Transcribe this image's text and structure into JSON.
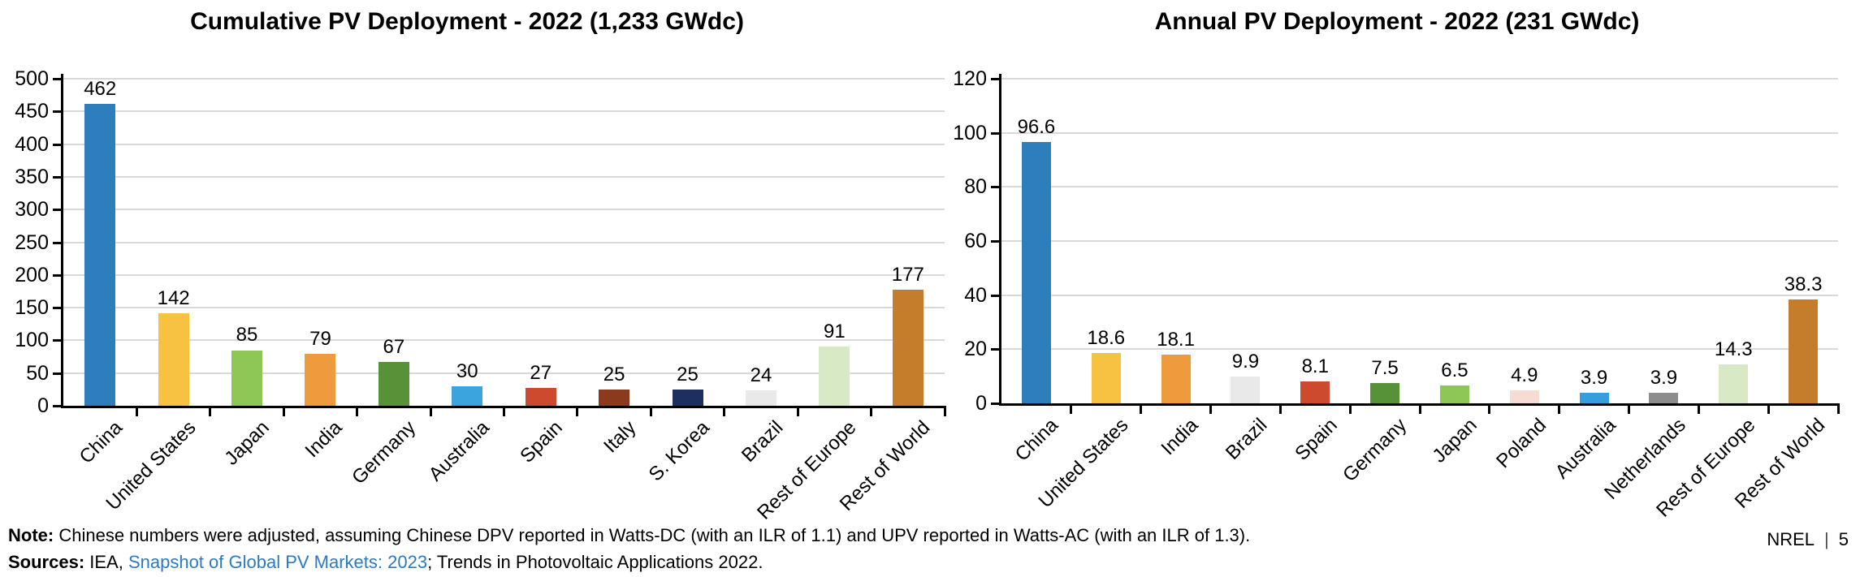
{
  "chart_data": [
    {
      "type": "bar",
      "title": "Cumulative PV Deployment - 2022 (1,233 GWdc)",
      "categories": [
        "China",
        "United States",
        "Japan",
        "India",
        "Germany",
        "Australia",
        "Spain",
        "Italy",
        "S. Korea",
        "Brazil",
        "Rest of Europe",
        "Rest of World"
      ],
      "values": [
        462,
        142,
        85,
        79,
        67,
        30,
        27,
        25,
        25,
        24,
        91,
        177
      ],
      "value_labels": [
        "462",
        "142",
        "85",
        "79",
        "67",
        "30",
        "27",
        "25",
        "25",
        "24",
        "91",
        "177"
      ],
      "colors": [
        "#2E7DBC",
        "#F7C242",
        "#8EC755",
        "#EE9B3D",
        "#579138",
        "#3BA4DE",
        "#CE4A2E",
        "#8C3A1D",
        "#1C2F5E",
        "#E9E9E9",
        "#D8E9C5",
        "#C57D2C"
      ],
      "xlabel": "",
      "ylabel": "",
      "ylim": [
        0,
        500
      ],
      "ytick_step": 50,
      "grid": true,
      "legend": false
    },
    {
      "type": "bar",
      "title": "Annual PV Deployment - 2022 (231 GWdc)",
      "categories": [
        "China",
        "United States",
        "India",
        "Brazil",
        "Spain",
        "Germany",
        "Japan",
        "Poland",
        "Australia",
        "Netherlands",
        "Rest of Europe",
        "Rest of World"
      ],
      "values": [
        96.6,
        18.6,
        18.1,
        9.9,
        8.1,
        7.5,
        6.5,
        4.9,
        3.9,
        3.9,
        14.3,
        38.3
      ],
      "value_labels": [
        "96.6",
        "18.6",
        "18.1",
        "9.9",
        "8.1",
        "7.5",
        "6.5",
        "4.9",
        "3.9",
        "3.9",
        "14.3",
        "38.3"
      ],
      "colors": [
        "#2E7DBC",
        "#F7C242",
        "#EE9B3D",
        "#E9E9E9",
        "#CE4A2E",
        "#579138",
        "#8EC755",
        "#F7DCD3",
        "#349FDC",
        "#8C8C8C",
        "#D8E9C5",
        "#C57D2C"
      ],
      "xlabel": "",
      "ylabel": "",
      "ylim": [
        0,
        120
      ],
      "ytick_step": 20,
      "grid": true,
      "legend": false
    }
  ],
  "footer": {
    "note_label": "Note:",
    "note_text": " Chinese numbers were adjusted, assuming Chinese DPV reported in Watts-DC (with an ILR of 1.1) and UPV reported in Watts-AC (with an ILR of 1.3).",
    "sources_label": "Sources:",
    "sources_prefix": " IEA, ",
    "sources_link": "Snapshot of Global PV Markets: 2023",
    "sources_suffix": "; Trends in Photovoltaic Applications 2022.",
    "link_color": "#2B7BC0",
    "page_label": "NREL",
    "page_separator": "|",
    "page_number": "5"
  }
}
